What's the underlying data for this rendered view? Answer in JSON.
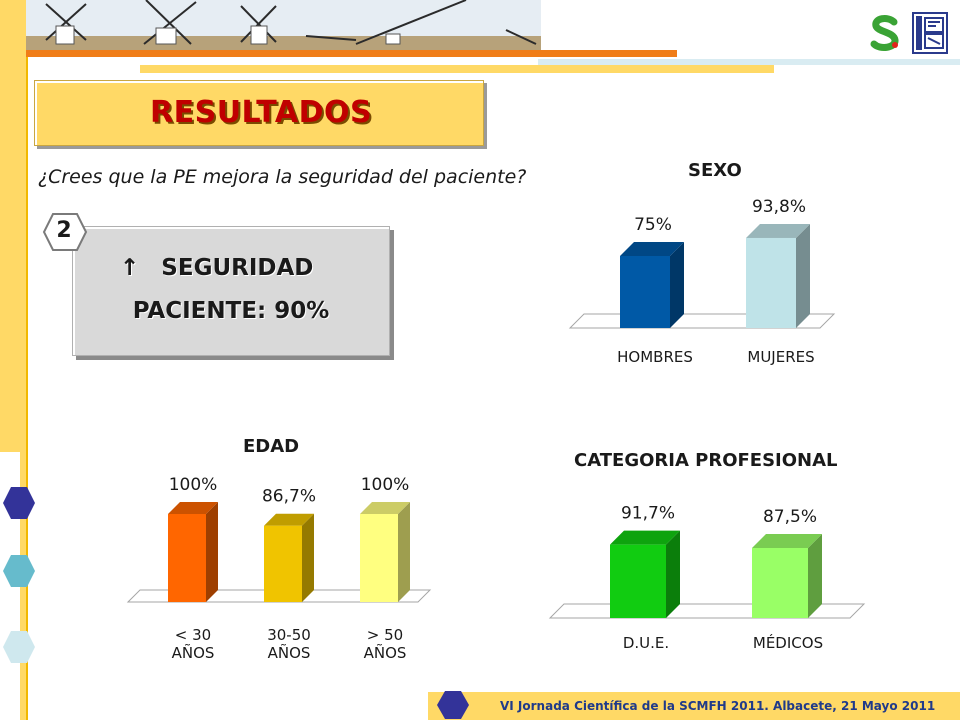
{
  "title": "RESULTADOS",
  "question": "¿Crees que la PE mejora la seguridad del paciente?",
  "badge": "2",
  "highlight": {
    "arrow": "↑",
    "line1": "SEGURIDAD",
    "line2": "PACIENTE: 90%"
  },
  "footer": "VI Jornada Científica de la SCMFH 2011. Albacete, 21 Mayo 2011",
  "colors": {
    "accent_red": "#c00000",
    "banner_yellow": "#ffd966",
    "orange_line": "#f07d18",
    "footer_text": "#1f3a8a"
  },
  "chart_data": [
    {
      "type": "bar",
      "title": "SEXO",
      "categories": [
        "HOMBRES",
        "MUJERES"
      ],
      "values": [
        75,
        93.8
      ],
      "value_labels": [
        "75%",
        "93,8%"
      ],
      "colors": [
        "#0059a6",
        "#bfe3e8"
      ],
      "ylim": [
        0,
        100
      ]
    },
    {
      "type": "bar",
      "title": "EDAD",
      "categories": [
        "< 30\nAÑOS",
        "30-50\nAÑOS",
        "> 50\nAÑOS"
      ],
      "values": [
        100,
        86.7,
        100
      ],
      "value_labels": [
        "100%",
        "86,7%",
        "100%"
      ],
      "colors": [
        "#ff6600",
        "#f0c400",
        "#ffff80"
      ],
      "ylim": [
        0,
        100
      ]
    },
    {
      "type": "bar",
      "title": "CATEGORIA PROFESIONAL",
      "categories": [
        "D.U.E.",
        "MÉDICOS"
      ],
      "values": [
        91.7,
        87.5
      ],
      "value_labels": [
        "91,7%",
        "87,5%"
      ],
      "colors": [
        "#11cc11",
        "#99ff66"
      ],
      "ylim": [
        0,
        100
      ]
    }
  ]
}
